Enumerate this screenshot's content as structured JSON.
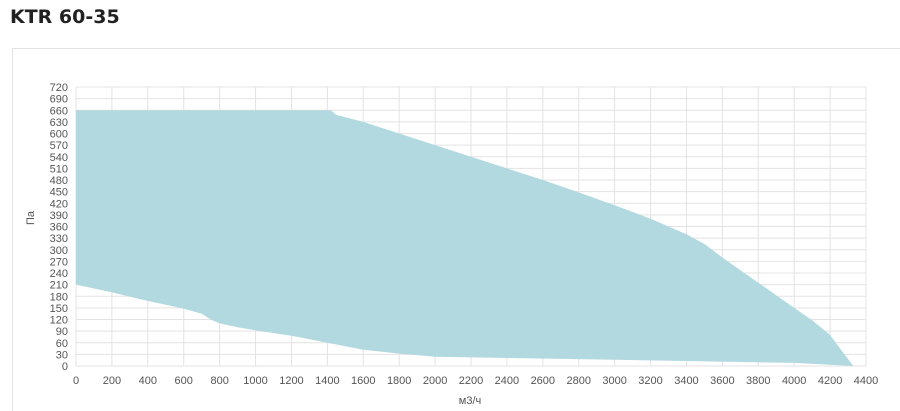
{
  "title": "KTR 60-35",
  "colors": {
    "area_fill": "#b3d9e0",
    "grid": "#e3e3e3",
    "text": "#555555",
    "title": "#222222"
  },
  "chart_data": {
    "type": "area",
    "title": "KTR 60-35",
    "xlabel": "м3/ч",
    "ylabel": "Па",
    "xlim": [
      0,
      4400
    ],
    "ylim": [
      0,
      720
    ],
    "x_ticks": [
      0,
      200,
      400,
      600,
      800,
      1000,
      1200,
      1400,
      1600,
      1800,
      2000,
      2200,
      2400,
      2600,
      2800,
      3000,
      3200,
      3400,
      3600,
      3800,
      4000,
      4200,
      4400
    ],
    "y_ticks": [
      0,
      30,
      60,
      90,
      120,
      150,
      180,
      210,
      240,
      270,
      300,
      330,
      360,
      390,
      420,
      450,
      480,
      510,
      540,
      570,
      600,
      630,
      660,
      690,
      720
    ],
    "grid": true,
    "series": [
      {
        "role": "upper",
        "points": [
          [
            0,
            660
          ],
          [
            1420,
            660
          ],
          [
            1450,
            648
          ],
          [
            1600,
            630
          ],
          [
            1800,
            600
          ],
          [
            2000,
            570
          ],
          [
            2200,
            540
          ],
          [
            2400,
            510
          ],
          [
            2600,
            480
          ],
          [
            2800,
            448
          ],
          [
            3000,
            415
          ],
          [
            3200,
            380
          ],
          [
            3400,
            340
          ],
          [
            3500,
            315
          ],
          [
            3600,
            280
          ],
          [
            3800,
            215
          ],
          [
            4000,
            150
          ],
          [
            4100,
            118
          ],
          [
            4200,
            80
          ],
          [
            4280,
            30
          ],
          [
            4330,
            0
          ]
        ]
      },
      {
        "role": "lower",
        "points": [
          [
            0,
            210
          ],
          [
            200,
            190
          ],
          [
            400,
            168
          ],
          [
            600,
            148
          ],
          [
            700,
            135
          ],
          [
            750,
            120
          ],
          [
            800,
            110
          ],
          [
            900,
            100
          ],
          [
            1000,
            92
          ],
          [
            1200,
            78
          ],
          [
            1400,
            60
          ],
          [
            1600,
            42
          ],
          [
            1800,
            32
          ],
          [
            2000,
            24
          ],
          [
            2500,
            20
          ],
          [
            3000,
            16
          ],
          [
            3500,
            12
          ],
          [
            4000,
            8
          ],
          [
            4330,
            0
          ]
        ]
      }
    ]
  }
}
